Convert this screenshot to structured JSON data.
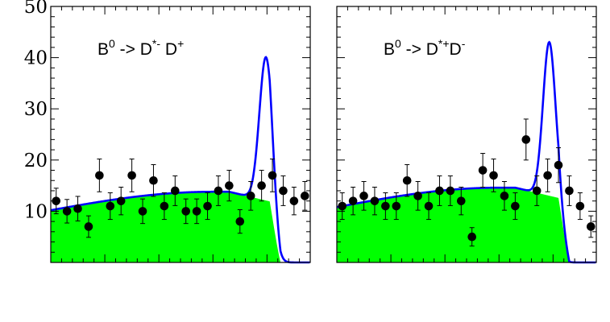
{
  "chart_data": [
    {
      "type": "scatter",
      "title": "",
      "annotation": {
        "base": "B",
        "base_sup": "0",
        "arrow": " -> ",
        "d1": "D",
        "d1_sup": "*-",
        "sep": " ",
        "d2": "D",
        "d2_sup": "+"
      },
      "xlabel": "",
      "ylabel": "",
      "ylim": [
        0,
        50
      ],
      "yticks": [
        "10",
        "20",
        "30",
        "40",
        "50"
      ],
      "xlim": [
        0,
        48
      ],
      "grid": false,
      "points": {
        "x": [
          1,
          3,
          5,
          7,
          9,
          11,
          13,
          15,
          17,
          19,
          21,
          23,
          25,
          27,
          29,
          31,
          33,
          35,
          37,
          39,
          41,
          43,
          45,
          47
        ],
        "y": [
          12,
          10,
          10.5,
          7,
          17,
          11,
          12,
          17,
          10,
          16,
          11,
          14,
          10,
          10,
          11,
          14,
          15,
          8,
          13,
          15,
          17,
          14,
          12,
          13
        ],
        "err": [
          2.5,
          2.3,
          2.4,
          2.1,
          3.2,
          2.6,
          2.7,
          3.2,
          2.4,
          3.1,
          2.6,
          2.9,
          2.4,
          2.4,
          2.6,
          2.9,
          3.0,
          2.3,
          2.8,
          3.0,
          3.2,
          2.9,
          2.7,
          2.8
        ]
      },
      "series": [
        {
          "name": "",
          "color": "#0000ff",
          "role": "total fit"
        },
        {
          "name": "",
          "color": "#00ff00",
          "role": "background"
        }
      ]
    },
    {
      "type": "scatter",
      "title": "",
      "annotation": {
        "base": "B",
        "base_sup": "0",
        "arrow": " -> ",
        "d1": "D",
        "d1_sup": "*+",
        "sep": "",
        "d2": "D",
        "d2_sup": "-"
      },
      "xlabel": "",
      "ylabel": "",
      "ylim": [
        0,
        50
      ],
      "xlim": [
        0,
        48
      ],
      "grid": false,
      "points": {
        "x": [
          1,
          3,
          5,
          7,
          9,
          11,
          13,
          15,
          17,
          19,
          21,
          23,
          25,
          27,
          29,
          31,
          33,
          35,
          37,
          39,
          41,
          43,
          45,
          47
        ],
        "y": [
          11,
          12,
          13,
          12,
          11,
          11,
          16,
          13,
          11,
          14,
          14,
          12,
          5,
          18,
          17,
          13,
          11,
          24,
          14,
          17,
          19,
          14,
          11,
          7
        ],
        "err": [
          2.6,
          2.7,
          2.8,
          2.7,
          2.6,
          2.6,
          3.1,
          2.8,
          2.6,
          2.9,
          2.9,
          2.7,
          1.8,
          3.3,
          3.2,
          2.8,
          2.6,
          4.0,
          2.9,
          3.2,
          3.4,
          2.9,
          2.6,
          2.1
        ]
      },
      "series": [
        {
          "name": "",
          "color": "#0000ff",
          "role": "total fit"
        },
        {
          "name": "",
          "color": "#00ff00",
          "role": "background"
        }
      ]
    }
  ]
}
